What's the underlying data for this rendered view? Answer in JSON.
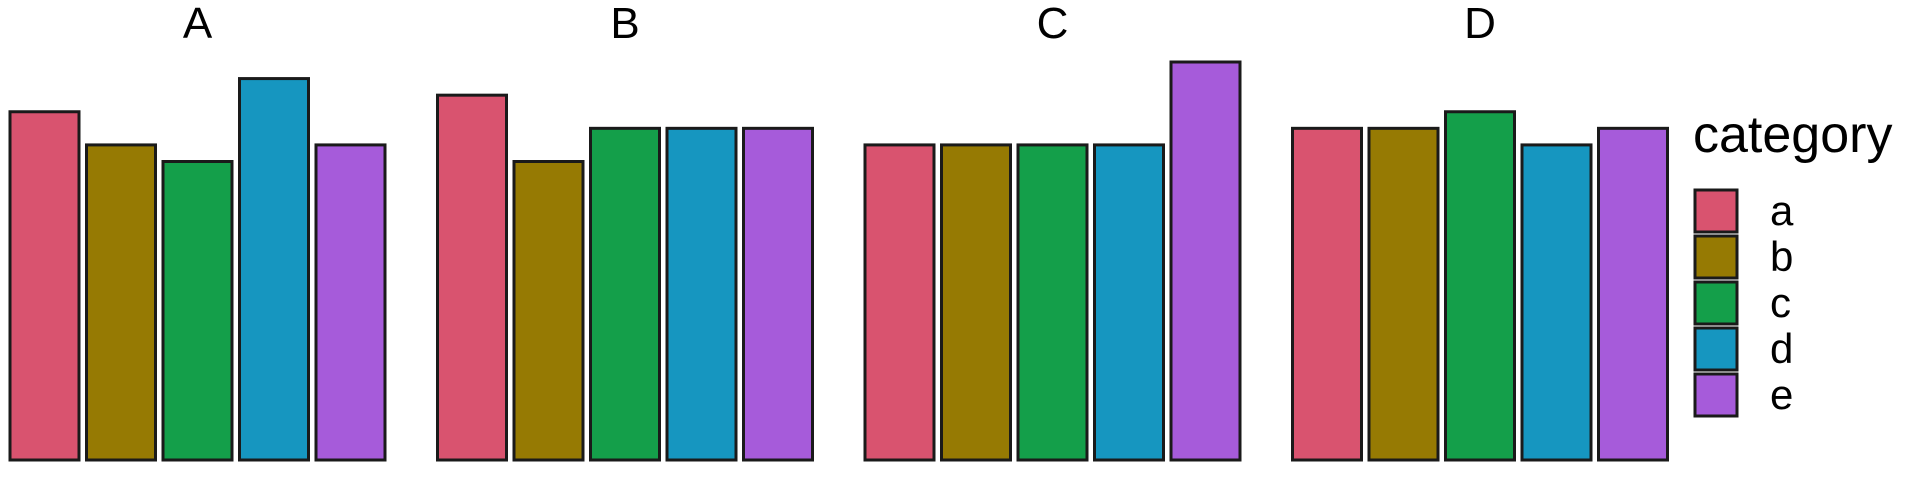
{
  "chart_data": {
    "type": "bar",
    "facets": [
      "A",
      "B",
      "C",
      "D"
    ],
    "categories": [
      "a",
      "b",
      "c",
      "d",
      "e"
    ],
    "series": [
      {
        "facet": "A",
        "values": [
          21,
          19,
          18,
          23,
          19
        ]
      },
      {
        "facet": "B",
        "values": [
          22,
          18,
          20,
          20,
          20
        ]
      },
      {
        "facet": "C",
        "values": [
          19,
          19,
          19,
          19,
          24
        ]
      },
      {
        "facet": "D",
        "values": [
          20,
          20,
          21,
          19,
          20
        ]
      }
    ],
    "colors": {
      "a": "#D9536F",
      "b": "#967A03",
      "c": "#149F4A",
      "d": "#1696C0",
      "e": "#A65BDA"
    },
    "legend": {
      "title": "category",
      "labels": [
        "a",
        "b",
        "c",
        "d",
        "e"
      ],
      "placement": "right"
    },
    "title": "",
    "xlabel": "",
    "ylabel": "",
    "ylim": [
      0,
      24
    ],
    "grid": false,
    "axes_visible": false
  }
}
